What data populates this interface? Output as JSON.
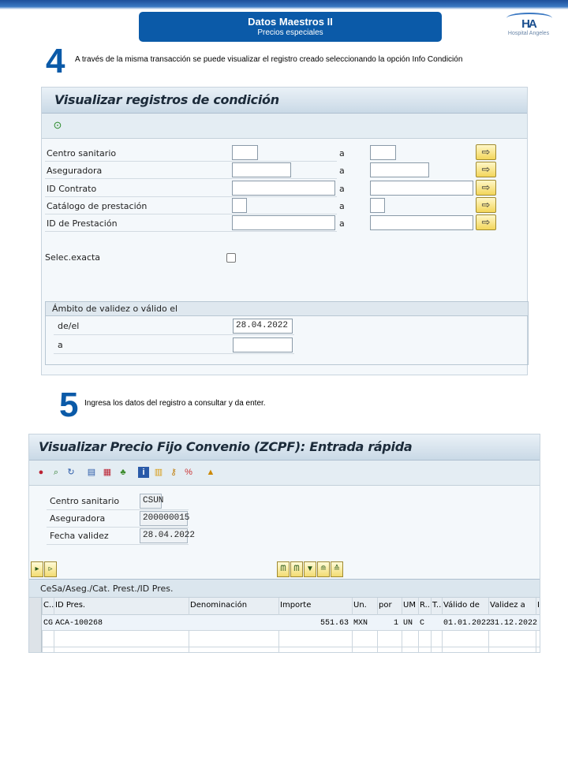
{
  "header": {
    "title": "Datos Maestros II",
    "subtitle": "Precios especiales",
    "logo_text": "Hospital Angeles",
    "logo_mark": "HA"
  },
  "step4": {
    "number": "4",
    "text": "A través de la misma transacción se puede visualizar el registro creado seleccionando la opción Info Condición"
  },
  "screen1": {
    "title": "Visualizar registros de condición",
    "toolbar_icons": [
      "execute-icon"
    ],
    "to_label": "a",
    "fields": [
      {
        "label": "Centro sanitario",
        "from": "",
        "to": ""
      },
      {
        "label": "Aseguradora",
        "from": "",
        "to": ""
      },
      {
        "label": "ID Contrato",
        "from": "",
        "to": ""
      },
      {
        "label": "Catálogo de prestación",
        "from": "",
        "to": ""
      },
      {
        "label": "ID de Prestación",
        "from": "",
        "to": ""
      }
    ],
    "exact_label": "Selec.exacta",
    "exact_checked": false,
    "validity": {
      "title": "Ámbito de validez o válido el",
      "from_label": "de/el",
      "from_value": "28.04.2022",
      "to_label": "a",
      "to_value": ""
    }
  },
  "step5": {
    "number": "5",
    "text": "Ingresa los datos del registro a consultar y da enter."
  },
  "screen2": {
    "title": "Visualizar Precio Fijo Convenio  (ZCPF): Entrada rápida",
    "fields": [
      {
        "label": "Centro sanitario",
        "value": "CSUN"
      },
      {
        "label": "Aseguradora",
        "value": "200000015"
      },
      {
        "label": "Fecha validez",
        "value": "28.04.2022"
      }
    ],
    "grid_title": "CeSa/Aseg./Cat. Prest./ID Pres.",
    "columns": [
      "C..",
      "ID Pres.",
      "Denominación",
      "Importe",
      "Un.",
      "por",
      "UM",
      "R..",
      "T..",
      "Válido de",
      "Validez a",
      "I"
    ],
    "rows": [
      [
        "CG",
        "ACA-100268",
        "",
        "551.63",
        "MXN",
        "1",
        "UN",
        "C",
        "",
        "01.01.2022",
        "31.12.2022",
        ""
      ]
    ]
  }
}
